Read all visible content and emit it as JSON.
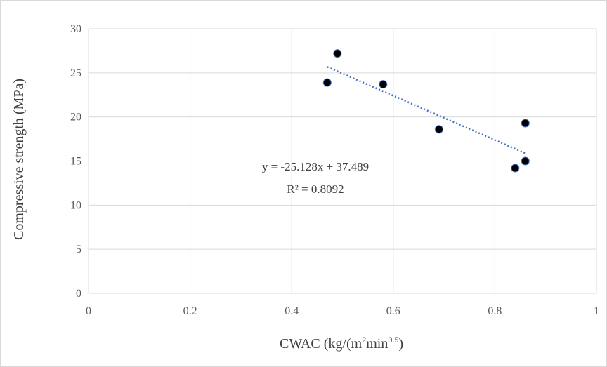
{
  "chart_data": {
    "type": "scatter",
    "xlabel": {
      "main": "CWAC (kg/(m",
      "sup1": "2",
      "mid": "min",
      "sup2": "0.5",
      "end": ")"
    },
    "ylabel": "Compressive strength (MPa)",
    "xlim": [
      0,
      1
    ],
    "ylim": [
      0,
      30
    ],
    "x_ticks": [
      "0",
      "0.2",
      "0.4",
      "0.6",
      "0.8",
      "1"
    ],
    "y_ticks": [
      "0",
      "5",
      "10",
      "15",
      "20",
      "25",
      "30"
    ],
    "grid": true,
    "series": [
      {
        "points": [
          {
            "x": 0.47,
            "y": 23.9
          },
          {
            "x": 0.49,
            "y": 27.2
          },
          {
            "x": 0.58,
            "y": 23.7
          },
          {
            "x": 0.69,
            "y": 18.6
          },
          {
            "x": 0.84,
            "y": 14.2
          },
          {
            "x": 0.86,
            "y": 15.0
          },
          {
            "x": 0.86,
            "y": 19.3
          }
        ],
        "marker_color": "#000000",
        "marker_edge": "#4472c4"
      }
    ],
    "trendline": {
      "type": "linear",
      "slope": -25.128,
      "intercept": 37.489,
      "x_range": [
        0.47,
        0.86
      ],
      "color": "#4472c4",
      "style": "dotted",
      "equation": "y = -25.128x + 37.489",
      "r_squared": "R² = 0.8092"
    }
  },
  "colors": {
    "grid": "#d9d9d9",
    "text": "#595959"
  }
}
